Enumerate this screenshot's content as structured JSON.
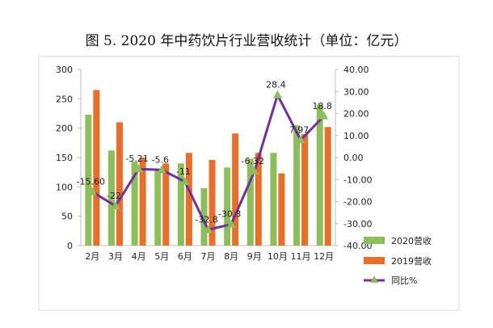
{
  "title": "图 5. 2020 年中药饮片行业营收统计（单位：亿元）",
  "colors": {
    "s2020": "#8cbf5a",
    "s2019": "#ec6d28",
    "yoy": "#7030a0",
    "marker": "#8cbf5a",
    "grid": "#d9d9d9"
  },
  "chart_data": {
    "type": "bar",
    "title": "图 5. 2020 年中药饮片行业营收统计（单位：亿元）",
    "categories": [
      "2月",
      "3月",
      "4月",
      "5月",
      "6月",
      "7月",
      "8月",
      "9月",
      "10月",
      "11月",
      "12月"
    ],
    "series": [
      {
        "name": "2020营收",
        "type": "bar",
        "axis": "left",
        "values": [
          223,
          162,
          143,
          130,
          140,
          98,
          133,
          148,
          158,
          205,
          240
        ]
      },
      {
        "name": "2019营收",
        "type": "bar",
        "axis": "left",
        "values": [
          265,
          210,
          150,
          140,
          158,
          146,
          191,
          158,
          123,
          190,
          202
        ]
      },
      {
        "name": "同比%",
        "type": "line",
        "axis": "right",
        "values": [
          -15.6,
          -22,
          -5.21,
          -5.6,
          -11,
          -32.8,
          -30.3,
          -6.32,
          28.4,
          7.97,
          18.8
        ],
        "labels": [
          "-15.60",
          "-22",
          "-5.21",
          "-5.6",
          "-11",
          "-32.8",
          "-30.3",
          "-6.32",
          "28.4",
          "7.97",
          "18.8"
        ]
      }
    ],
    "ylim_left": [
      0,
      300
    ],
    "yticks_left": [
      "0",
      "50",
      "100",
      "150",
      "200",
      "250",
      "300"
    ],
    "ylim_right": [
      -40,
      40
    ],
    "yticks_right": [
      "-40.00",
      "-30.00",
      "-20.00",
      "-10.00",
      "0.00",
      "10.00",
      "20.00",
      "30.00",
      "40.00"
    ],
    "grid": false,
    "legend": "bottom-right"
  }
}
